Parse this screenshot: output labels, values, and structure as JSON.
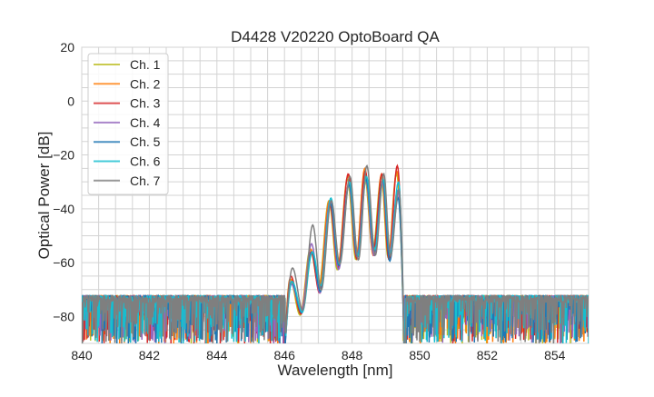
{
  "chart_data": {
    "type": "line",
    "title": "D4428 V20220 OptoBoard QA",
    "xlabel": "Wavelength [nm]",
    "ylabel": "Optical Power [dB]",
    "xlim": [
      840,
      855
    ],
    "ylim": [
      -90,
      20
    ],
    "xticks": [
      840,
      842,
      844,
      846,
      848,
      850,
      852,
      854
    ],
    "yticks": [
      20,
      0,
      -20,
      -40,
      -60,
      -80
    ],
    "grid": true,
    "legend_position": "top-left",
    "noise_floor_db": [
      -90,
      -72
    ],
    "signal_band_nm": [
      846.0,
      849.55
    ],
    "peak_wavelengths_nm": [
      846.2,
      846.8,
      847.35,
      847.9,
      848.4,
      848.9,
      849.35
    ],
    "trough_wavelengths_nm": [
      846.5,
      847.05,
      847.6,
      848.15,
      848.65,
      849.1
    ],
    "trough_power_db": [
      -78,
      -70,
      -62,
      -58,
      -56,
      -58
    ],
    "series": [
      {
        "name": "Ch. 1",
        "color": "#bcbd22",
        "peak_power_db": [
          -66,
          -55,
          -37,
          -29,
          -27,
          -28,
          -27
        ]
      },
      {
        "name": "Ch. 2",
        "color": "#ff7f0e",
        "peak_power_db": [
          -66,
          -55,
          -37,
          -28,
          -25,
          -27,
          -26
        ]
      },
      {
        "name": "Ch. 3",
        "color": "#d62728",
        "peak_power_db": [
          -65,
          -56,
          -38,
          -27,
          -26,
          -27,
          -24
        ]
      },
      {
        "name": "Ch. 4",
        "color": "#9467bd",
        "peak_power_db": [
          -68,
          -53,
          -37,
          -31,
          -29,
          -30,
          -33
        ]
      },
      {
        "name": "Ch. 5",
        "color": "#1f77b4",
        "peak_power_db": [
          -67,
          -56,
          -38,
          -31,
          -29,
          -29,
          -36
        ]
      },
      {
        "name": "Ch. 6",
        "color": "#17becf",
        "peak_power_db": [
          -67,
          -56,
          -36,
          -30,
          -28,
          -29,
          -30
        ]
      },
      {
        "name": "Ch. 7",
        "color": "#7f7f7f",
        "peak_power_db": [
          -62,
          -46,
          -37,
          -28,
          -24,
          -27,
          -33
        ]
      }
    ]
  }
}
